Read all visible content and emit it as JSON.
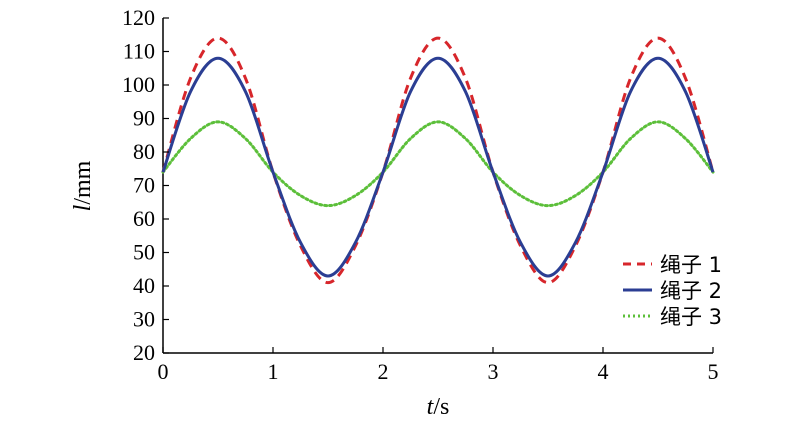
{
  "chart_data": {
    "type": "line",
    "xlabel": {
      "italic": "t",
      "unit": "/s"
    },
    "ylabel": {
      "italic": "l",
      "unit": "/mm"
    },
    "xlim": [
      0,
      5
    ],
    "ylim": [
      20,
      120
    ],
    "xticks": [
      "0",
      "1",
      "2",
      "3",
      "4",
      "5"
    ],
    "yticks": [
      "20",
      "30",
      "40",
      "50",
      "60",
      "70",
      "80",
      "90",
      "100",
      "110",
      "120"
    ],
    "legend_position": "right",
    "series": [
      {
        "name": "绳子 1",
        "color": "#d7262b",
        "style": "dashed",
        "x": [
          0,
          0.25,
          0.5,
          0.75,
          1,
          1.25,
          1.5,
          1.75,
          2,
          2.25,
          2.5,
          2.75,
          3,
          3.25,
          3.5,
          3.75,
          4,
          4.25,
          4.5,
          4.75,
          5
        ],
        "y": [
          74,
          102,
          114,
          102,
          74,
          52,
          41,
          52,
          74,
          102,
          114,
          102,
          74,
          52,
          41,
          52,
          74,
          102,
          114,
          102,
          74
        ]
      },
      {
        "name": "绳子 2",
        "color": "#2b3e93",
        "style": "solid",
        "x": [
          0,
          0.25,
          0.5,
          0.75,
          1,
          1.25,
          1.5,
          1.75,
          2,
          2.25,
          2.5,
          2.75,
          3,
          3.25,
          3.5,
          3.75,
          4,
          4.25,
          4.5,
          4.75,
          5
        ],
        "y": [
          74,
          98,
          108,
          98,
          74,
          53,
          43,
          53,
          74,
          98,
          108,
          98,
          74,
          53,
          43,
          53,
          74,
          98,
          108,
          98,
          74
        ]
      },
      {
        "name": "绳子 3",
        "color": "#5cbf3a",
        "style": "dotted",
        "x": [
          0,
          0.25,
          0.5,
          0.75,
          1,
          1.25,
          1.5,
          1.75,
          2,
          2.25,
          2.5,
          2.75,
          3,
          3.25,
          3.5,
          3.75,
          4,
          4.25,
          4.5,
          4.75,
          5
        ],
        "y": [
          74,
          84,
          89,
          84,
          74,
          67,
          64,
          67,
          74,
          84,
          89,
          84,
          74,
          67,
          64,
          67,
          74,
          84,
          89,
          84,
          74
        ]
      }
    ]
  }
}
